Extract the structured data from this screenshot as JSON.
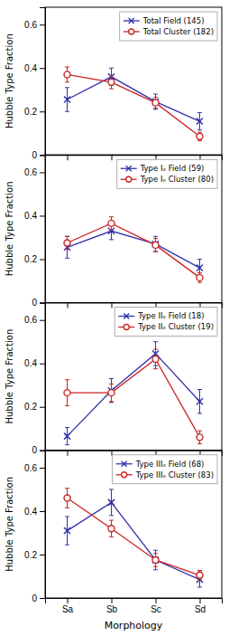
{
  "chart_data": [
    {
      "type": "line",
      "categories": [
        "Sa",
        "Sb",
        "Sc",
        "Sd"
      ],
      "ylabel": "Hubble Type Fraction",
      "ylim": [
        0,
        0.68
      ],
      "yticks": [
        0,
        0.2,
        0.4,
        0.6
      ],
      "tick_labels": "y",
      "legend": "upper right",
      "series": [
        {
          "name": "Total Field (145)",
          "color": "#3333aa",
          "marker": "x",
          "values": [
            0.255,
            0.36,
            0.245,
            0.155
          ],
          "errors": [
            0.055,
            0.04,
            0.035,
            0.04
          ]
        },
        {
          "name": "Total Cluster (182)",
          "color": "#cc2222",
          "marker": "o",
          "values": [
            0.37,
            0.335,
            0.24,
            0.085
          ],
          "errors": [
            0.035,
            0.03,
            0.025,
            0.02
          ]
        }
      ]
    },
    {
      "type": "line",
      "categories": [
        "Sa",
        "Sb",
        "Sc",
        "Sd"
      ],
      "ylabel": "Hubble Type Fraction",
      "ylim": [
        0,
        0.68
      ],
      "yticks": [
        0,
        0.2,
        0.4,
        0.6
      ],
      "tick_labels": "y",
      "legend": "upper right",
      "series": [
        {
          "name": "Type Iₒ Field (59)",
          "color": "#3333aa",
          "marker": "x",
          "values": [
            0.255,
            0.33,
            0.27,
            0.16
          ],
          "errors": [
            0.05,
            0.04,
            0.035,
            0.04
          ]
        },
        {
          "name": "Type Iₒ Cluster (80)",
          "color": "#cc2222",
          "marker": "o",
          "values": [
            0.275,
            0.365,
            0.265,
            0.115
          ],
          "errors": [
            0.03,
            0.03,
            0.03,
            0.022
          ]
        }
      ]
    },
    {
      "type": "line",
      "categories": [
        "Sa",
        "Sb",
        "Sc",
        "Sd"
      ],
      "ylabel": "Hubble Type Fraction",
      "ylim": [
        0,
        0.68
      ],
      "yticks": [
        0,
        0.2,
        0.4,
        0.6
      ],
      "tick_labels": "y",
      "legend": "upper right",
      "series": [
        {
          "name": "Type IIₒ Field (18)",
          "color": "#3333aa",
          "marker": "x",
          "values": [
            0.065,
            0.275,
            0.445,
            0.225
          ],
          "errors": [
            0.04,
            0.055,
            0.055,
            0.055
          ]
        },
        {
          "name": "Type IIₒ Cluster (19)",
          "color": "#cc2222",
          "marker": "o",
          "values": [
            0.265,
            0.265,
            0.42,
            0.06
          ],
          "errors": [
            0.06,
            0.04,
            0.045,
            0.03
          ]
        }
      ]
    },
    {
      "type": "line",
      "categories": [
        "Sa",
        "Sb",
        "Sc",
        "Sd"
      ],
      "xlabel": "Morphology",
      "ylabel": "Hubble Type Fraction",
      "ylim": [
        0,
        0.68
      ],
      "yticks": [
        0,
        0.2,
        0.4,
        0.6
      ],
      "legend": "upper right",
      "series": [
        {
          "name": "Type IIIₒ Field (68)",
          "color": "#3333aa",
          "marker": "x",
          "values": [
            0.31,
            0.44,
            0.175,
            0.085
          ],
          "errors": [
            0.065,
            0.06,
            0.045,
            0.035
          ]
        },
        {
          "name": "Type IIIₒ Cluster (83)",
          "color": "#cc2222",
          "marker": "o",
          "values": [
            0.46,
            0.32,
            0.175,
            0.105
          ],
          "errors": [
            0.045,
            0.038,
            0.03,
            0.022
          ]
        }
      ]
    }
  ]
}
